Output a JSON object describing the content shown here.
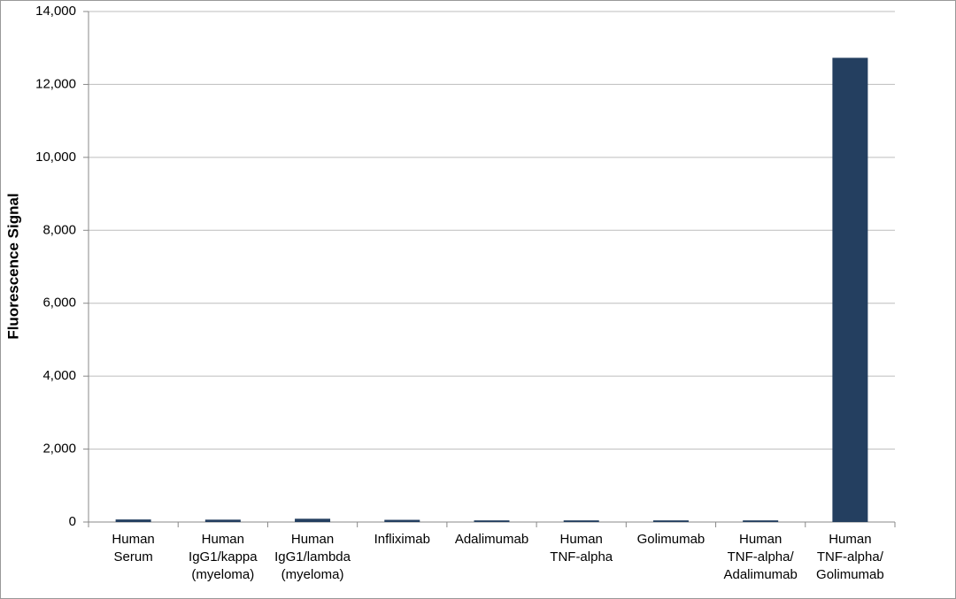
{
  "chart_data": {
    "type": "bar",
    "y_label": "Fluorescence Signal",
    "categories": [
      "Human\nSerum",
      "Human\nIgG1/kappa\n(myeloma)",
      "Human\nIgG1/lambda\n(myeloma)",
      "Infliximab",
      "Adalimumab",
      "Human\nTNF-alpha",
      "Golimumab",
      "Human\nTNF-alpha/\nAdalimumab",
      "Human\nTNF-alpha/\nGolimumab"
    ],
    "values": [
      70,
      65,
      90,
      60,
      45,
      45,
      45,
      45,
      12730
    ],
    "color": "#243f60",
    "ylim": [
      0,
      14000
    ],
    "yticks": [
      0,
      {
        "value": 2000,
        "label": "2,000"
      },
      {
        "value": 4000,
        "label": "4,000"
      },
      {
        "value": 6000,
        "label": "6,000"
      },
      {
        "value": 8000,
        "label": "8,000"
      },
      {
        "value": 10000,
        "label": "10,000"
      },
      {
        "value": 12000,
        "label": "12,000"
      },
      {
        "value": 14000,
        "label": "14,000"
      }
    ],
    "grid": true
  }
}
